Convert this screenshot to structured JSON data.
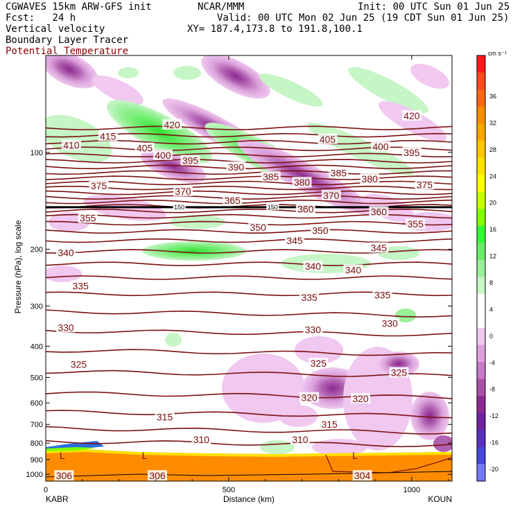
{
  "header": {
    "model": "CGWAVES 15km ARW-GFS init",
    "org": "NCAR/MMM",
    "init": "Init: 00 UTC Sun 01 Jun 25",
    "fcst": "Fcst:   24 h",
    "valid": "Valid: 00 UTC Mon 02 Jun 25 (19 CDT Sun 01 Jun 25)",
    "field1": "Vertical velocity",
    "xy": "XY= 187.4,173.8 to 191.8,100.1",
    "field2": "Boundary Layer Tracer",
    "field3": "Potential Temperature"
  },
  "chart_data": {
    "type": "heatmap",
    "xlabel": "Distance (km)",
    "ylabel": "Pressure (hPa), log scale",
    "xlim": [
      0,
      1110
    ],
    "ylim": [
      1050,
      50
    ],
    "y_scale": "log",
    "x_ticks": [
      0,
      500,
      1000
    ],
    "y_ticks": [
      100,
      200,
      300,
      400,
      500,
      600,
      700,
      800,
      900,
      1000
    ],
    "endpoints": {
      "left": "KABR",
      "right": "KOUN"
    },
    "colorbar": {
      "unit": "cm s⁻¹",
      "tick_labels": [
        "36",
        "32",
        "28",
        "24",
        "20",
        "16",
        "12",
        "8",
        "4",
        "0",
        "-4",
        "-8",
        "-12",
        "-16",
        "-20"
      ],
      "colors": [
        "#ff1a1a",
        "#ff4a1a",
        "#ff6a10",
        "#ff8c00",
        "#ffa500",
        "#ffc400",
        "#ffe000",
        "#ffff00",
        "#c8ff00",
        "#80ff00",
        "#33ff33",
        "#66ee66",
        "#99f099",
        "#c6f5c6",
        "#ffffff",
        "#ffffff",
        "#f0c8f0",
        "#e0a0e0",
        "#c878c8",
        "#a850a8",
        "#8c2890",
        "#7020a0",
        "#5a30c0",
        "#4848e0",
        "#7878ff"
      ]
    },
    "theta_labels": [
      {
        "text": "410",
        "x": 70,
        "p": 95
      },
      {
        "text": "415",
        "x": 170,
        "p": 89
      },
      {
        "text": "420",
        "x": 345,
        "p": 82
      },
      {
        "text": "420",
        "x": 1000,
        "p": 77
      },
      {
        "text": "405",
        "x": 270,
        "p": 97
      },
      {
        "text": "400",
        "x": 320,
        "p": 102
      },
      {
        "text": "395",
        "x": 395,
        "p": 106
      },
      {
        "text": "390",
        "x": 520,
        "p": 111
      },
      {
        "text": "385",
        "x": 615,
        "p": 119
      },
      {
        "text": "405",
        "x": 770,
        "p": 91
      },
      {
        "text": "400",
        "x": 915,
        "p": 96
      },
      {
        "text": "395",
        "x": 1000,
        "p": 100
      },
      {
        "text": "385",
        "x": 800,
        "p": 116
      },
      {
        "text": "380",
        "x": 700,
        "p": 124
      },
      {
        "text": "380",
        "x": 885,
        "p": 121
      },
      {
        "text": "375",
        "x": 145,
        "p": 127
      },
      {
        "text": "375",
        "x": 1035,
        "p": 126
      },
      {
        "text": "370",
        "x": 375,
        "p": 132
      },
      {
        "text": "370",
        "x": 780,
        "p": 136
      },
      {
        "text": "365",
        "x": 510,
        "p": 141
      },
      {
        "text": "360",
        "x": 710,
        "p": 150
      },
      {
        "text": "360",
        "x": 910,
        "p": 153
      },
      {
        "text": "355",
        "x": 115,
        "p": 160
      },
      {
        "text": "355",
        "x": 1010,
        "p": 167
      },
      {
        "text": "350",
        "x": 580,
        "p": 171
      },
      {
        "text": "350",
        "x": 750,
        "p": 175
      },
      {
        "text": "345",
        "x": 680,
        "p": 188
      },
      {
        "text": "345",
        "x": 910,
        "p": 198
      },
      {
        "text": "340",
        "x": 55,
        "p": 205
      },
      {
        "text": "340",
        "x": 730,
        "p": 226
      },
      {
        "text": "340",
        "x": 840,
        "p": 232
      },
      {
        "text": "335",
        "x": 95,
        "p": 260
      },
      {
        "text": "335",
        "x": 720,
        "p": 282
      },
      {
        "text": "335",
        "x": 920,
        "p": 277
      },
      {
        "text": "330",
        "x": 55,
        "p": 350
      },
      {
        "text": "330",
        "x": 730,
        "p": 355
      },
      {
        "text": "330",
        "x": 940,
        "p": 340
      },
      {
        "text": "325",
        "x": 90,
        "p": 455
      },
      {
        "text": "325",
        "x": 745,
        "p": 452
      },
      {
        "text": "325",
        "x": 965,
        "p": 483
      },
      {
        "text": "320",
        "x": 720,
        "p": 578
      },
      {
        "text": "320",
        "x": 860,
        "p": 582
      },
      {
        "text": "315",
        "x": 325,
        "p": 663
      },
      {
        "text": "315",
        "x": 775,
        "p": 700
      },
      {
        "text": "310",
        "x": 425,
        "p": 780
      },
      {
        "text": "310",
        "x": 695,
        "p": 780
      },
      {
        "text": "306",
        "x": 50,
        "p": 1010
      },
      {
        "text": "306",
        "x": 305,
        "p": 1010
      },
      {
        "text": "304",
        "x": 865,
        "p": 1010
      }
    ],
    "low_markers": [
      {
        "text": "L",
        "x": 45,
        "p": 875
      },
      {
        "text": "L",
        "x": 270,
        "p": 875
      },
      {
        "text": "L",
        "x": 845,
        "p": 875
      }
    ],
    "tracer_labels": [
      {
        "text": "150",
        "x": 365,
        "p": 148
      },
      {
        "text": "150",
        "x": 620,
        "p": 148
      }
    ]
  }
}
